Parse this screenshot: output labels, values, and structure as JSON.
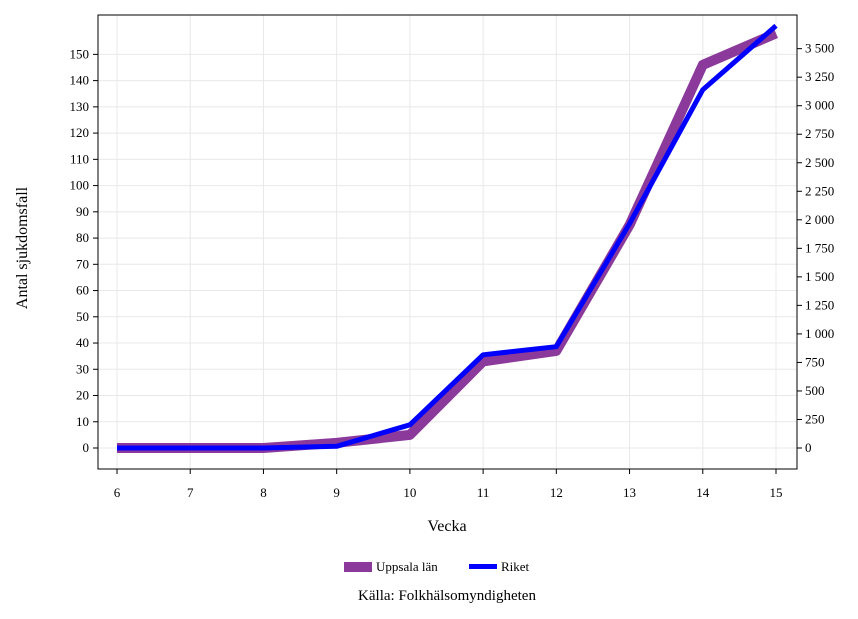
{
  "chart_data": {
    "type": "line",
    "xlabel": "Vecka",
    "ylabel": "Antal sjukdomsfall",
    "x": [
      6,
      7,
      8,
      9,
      10,
      11,
      12,
      13,
      14,
      15
    ],
    "xticks": [
      "6",
      "7",
      "8",
      "9",
      "10",
      "11",
      "12",
      "13",
      "14",
      "15"
    ],
    "xlim": [
      6,
      15
    ],
    "ylim": [
      -8,
      165
    ],
    "y2lim": [
      -184,
      3795
    ],
    "yticks": [
      "0",
      "10",
      "20",
      "30",
      "40",
      "50",
      "60",
      "70",
      "80",
      "90",
      "100",
      "110",
      "120",
      "130",
      "140",
      "150"
    ],
    "y2ticks": [
      "0",
      "250",
      "500",
      "750",
      "1 000",
      "1 250",
      "1 500",
      "1 750",
      "2 000",
      "2 250",
      "2 500",
      "2 750",
      "3 000",
      "3 250",
      "3 500"
    ],
    "grid": true,
    "series": [
      {
        "name": "Uppsala län",
        "axis": "left",
        "color": "#8b3a9b",
        "values": [
          0,
          0,
          0,
          2,
          5,
          33,
          37,
          85,
          146,
          158
        ]
      },
      {
        "name": "Riket",
        "axis": "right",
        "color": "#0000ff",
        "values": [
          0,
          0,
          0,
          15,
          203,
          817,
          888,
          1967,
          3140,
          3700
        ]
      }
    ],
    "legend_position": "bottom-center",
    "source": "Källa: Folkhälsomyndigheten"
  }
}
